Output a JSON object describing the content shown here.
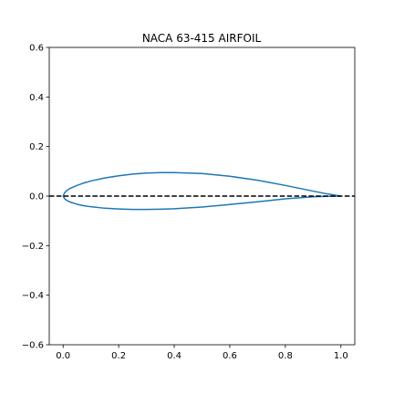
{
  "chart_data": {
    "type": "line",
    "title": "NACA 63-415 AIRFOIL",
    "xlabel": "",
    "ylabel": "",
    "xlim": [
      -0.05,
      1.05
    ],
    "ylim": [
      -0.6,
      0.6
    ],
    "x_ticks": [
      0.0,
      0.2,
      0.4,
      0.6,
      0.8,
      1.0
    ],
    "x_tick_labels": [
      "0.0",
      "0.2",
      "0.4",
      "0.6",
      "0.8",
      "1.0"
    ],
    "y_ticks": [
      -0.6,
      -0.4,
      -0.2,
      0.0,
      0.2,
      0.4,
      0.6
    ],
    "y_tick_labels": [
      "−0.6",
      "−0.4",
      "−0.2",
      "0.0",
      "0.2",
      "0.4",
      "0.6"
    ],
    "grid": false,
    "legend": false,
    "series": [
      {
        "style": "solid",
        "color": "#1f77b4",
        "x": [
          1.0,
          0.95,
          0.9,
          0.8,
          0.7,
          0.6,
          0.5,
          0.4,
          0.35,
          0.3,
          0.25,
          0.2,
          0.15,
          0.1,
          0.075,
          0.05,
          0.025,
          0.0125,
          0.005,
          0.0,
          0.005,
          0.0125,
          0.025,
          0.05,
          0.075,
          0.1,
          0.15,
          0.2,
          0.25,
          0.3,
          0.35,
          0.4,
          0.5,
          0.6,
          0.7,
          0.8,
          0.9,
          0.95,
          1.0
        ],
        "y": [
          0.0,
          0.009,
          0.02,
          0.043,
          0.064,
          0.08,
          0.091,
          0.095,
          0.095,
          0.093,
          0.089,
          0.082,
          0.073,
          0.061,
          0.053,
          0.043,
          0.031,
          0.022,
          0.013,
          0.0,
          -0.01,
          -0.017,
          -0.024,
          -0.033,
          -0.039,
          -0.043,
          -0.049,
          -0.052,
          -0.054,
          -0.054,
          -0.053,
          -0.051,
          -0.044,
          -0.034,
          -0.023,
          -0.011,
          -0.003,
          -0.001,
          0.0
        ]
      },
      {
        "style": "dashed",
        "color": "#000000",
        "x": [
          -0.05,
          1.05
        ],
        "y": [
          0.0,
          0.0
        ]
      }
    ]
  }
}
